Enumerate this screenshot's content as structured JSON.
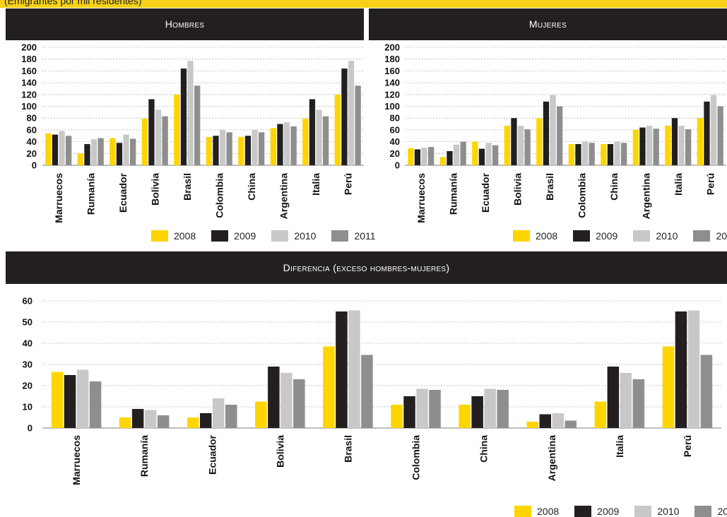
{
  "header": {
    "subtitle": "(Emigrantes por mil residentes)"
  },
  "colors": {
    "2008": "#ffd500",
    "2009": "#231f20",
    "2010": "#c8c8c8",
    "2011": "#8e8e8e",
    "band": "#231f20",
    "accent": "#f7d117"
  },
  "legend": {
    "entries": [
      "2008",
      "2009",
      "2010",
      "2011"
    ]
  },
  "chart_data": [
    {
      "type": "bar",
      "title": "Hombres",
      "categories": [
        "Marruecos",
        "Rumanía",
        "Ecuador",
        "Bolivia",
        "Brasil",
        "Colombia",
        "China",
        "Argentina",
        "Italia",
        "Perú"
      ],
      "series": [
        {
          "name": "2008",
          "values": [
            54,
            20,
            46,
            79,
            120,
            48,
            48,
            63,
            79,
            120
          ]
        },
        {
          "name": "2009",
          "values": [
            52,
            36,
            38,
            112,
            164,
            50,
            50,
            70,
            112,
            164
          ]
        },
        {
          "name": "2010",
          "values": [
            58,
            44,
            52,
            94,
            177,
            60,
            60,
            73,
            94,
            177
          ]
        },
        {
          "name": "2011",
          "values": [
            50,
            46,
            45,
            83,
            135,
            56,
            56,
            66,
            83,
            135
          ]
        }
      ],
      "ylim": [
        0,
        200
      ],
      "yticks": [
        0,
        20,
        40,
        60,
        80,
        100,
        120,
        140,
        160,
        180,
        200
      ],
      "grid": true,
      "legend": "bottom-right"
    },
    {
      "type": "bar",
      "title": "Mujeres",
      "categories": [
        "Marruecos",
        "Rumanía",
        "Ecuador",
        "Bolivia",
        "Brasil",
        "Colombia",
        "China",
        "Argentina",
        "Italia",
        "Perú"
      ],
      "series": [
        {
          "name": "2008",
          "values": [
            29,
            14,
            40,
            67,
            80,
            36,
            36,
            60,
            67,
            80
          ]
        },
        {
          "name": "2009",
          "values": [
            27,
            24,
            28,
            80,
            108,
            36,
            36,
            64,
            80,
            108
          ]
        },
        {
          "name": "2010",
          "values": [
            30,
            35,
            38,
            67,
            119,
            40,
            40,
            67,
            67,
            119
          ]
        },
        {
          "name": "2011",
          "values": [
            31,
            40,
            34,
            61,
            100,
            38,
            38,
            62,
            61,
            100
          ]
        }
      ],
      "ylim": [
        0,
        200
      ],
      "yticks": [
        0,
        20,
        40,
        60,
        80,
        100,
        120,
        140,
        160,
        180,
        200
      ],
      "grid": true,
      "legend": "bottom-right"
    },
    {
      "type": "bar",
      "title": "Diferencia (exceso hombres-mujeres)",
      "categories": [
        "Marruecos",
        "Rumanía",
        "Ecuador",
        "Bolivia",
        "Brasil",
        "Colombia",
        "China",
        "Argentina",
        "Italia",
        "Perú"
      ],
      "series": [
        {
          "name": "2008",
          "values": [
            26.5,
            5,
            5,
            12.5,
            38.5,
            11,
            11,
            3,
            12.5,
            38.5
          ]
        },
        {
          "name": "2009",
          "values": [
            25,
            9,
            7,
            29,
            55,
            15,
            15,
            6.5,
            29,
            55
          ]
        },
        {
          "name": "2010",
          "values": [
            27.5,
            8.5,
            14,
            26,
            55.5,
            18.5,
            18.5,
            7,
            26,
            55.5
          ]
        },
        {
          "name": "2011",
          "values": [
            22,
            6,
            11,
            23,
            34.5,
            18,
            18,
            3.5,
            23,
            34.5
          ]
        }
      ],
      "ylim": [
        0,
        60
      ],
      "yticks": [
        0,
        10,
        20,
        30,
        40,
        50,
        60
      ],
      "grid": true,
      "legend": "bottom-right"
    }
  ]
}
